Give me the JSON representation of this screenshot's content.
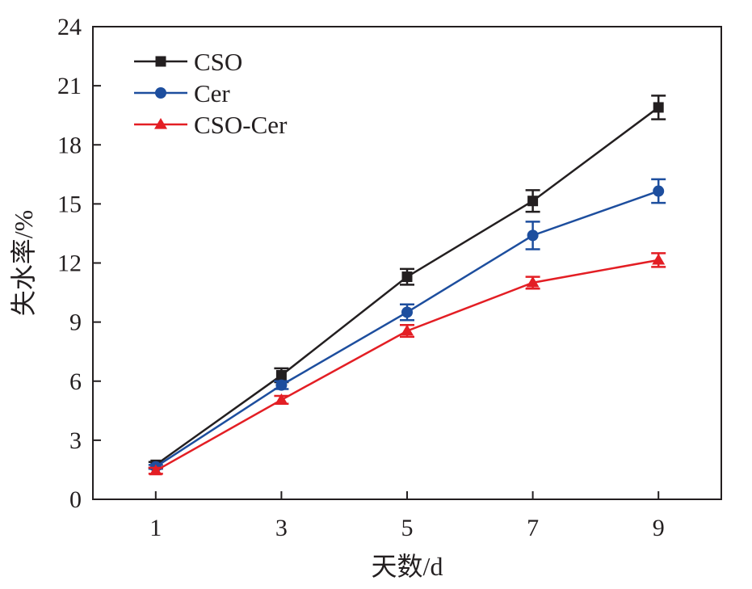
{
  "chart_data": {
    "type": "line",
    "title": "",
    "xlabel": "天数/d",
    "ylabel": "失水率/%",
    "x": [
      1,
      3,
      5,
      7,
      9
    ],
    "xticks": [
      "1",
      "3",
      "5",
      "7",
      "9"
    ],
    "xlim": [
      0,
      10
    ],
    "yticks": [
      "0",
      "3",
      "6",
      "9",
      "12",
      "15",
      "18",
      "21",
      "24"
    ],
    "ylim": [
      0,
      24
    ],
    "grid": false,
    "legend_position": "top-left",
    "series": [
      {
        "name": "CSO",
        "color": "#231f20",
        "marker": "square",
        "values": [
          1.75,
          6.3,
          11.3,
          15.15,
          19.9
        ],
        "errors": [
          0.15,
          0.35,
          0.4,
          0.55,
          0.6
        ]
      },
      {
        "name": "Cer",
        "color": "#1d4e9e",
        "marker": "circle",
        "values": [
          1.65,
          5.8,
          9.5,
          13.4,
          15.65
        ],
        "errors": [
          0.1,
          0.2,
          0.4,
          0.7,
          0.6
        ]
      },
      {
        "name": "CSO-Cer",
        "color": "#e31e24",
        "marker": "triangle",
        "values": [
          1.45,
          5.05,
          8.55,
          11.0,
          12.15
        ],
        "errors": [
          0.15,
          0.2,
          0.3,
          0.3,
          0.35
        ]
      }
    ]
  }
}
